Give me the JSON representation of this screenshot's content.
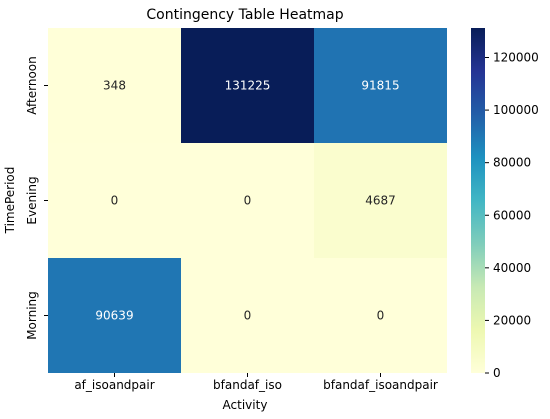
{
  "chart_data": {
    "type": "heatmap",
    "title": "Contingency Table Heatmap",
    "xlabel": "Activity",
    "ylabel": "TimePeriod",
    "x_categories": [
      "af_isoandpair",
      "bfandaf_iso",
      "bfandaf_isoandpair"
    ],
    "y_categories": [
      "Afternoon",
      "Evening",
      "Morning"
    ],
    "values": [
      [
        348,
        131225,
        91815
      ],
      [
        0,
        0,
        4687
      ],
      [
        90639,
        0,
        0
      ]
    ],
    "colormap": "YlGnBu",
    "vmin": 0,
    "vmax": 131225,
    "colorbar_ticks": [
      "0",
      "20000",
      "40000",
      "60000",
      "80000",
      "100000",
      "120000"
    ],
    "colorbar_tick_values": [
      0,
      20000,
      40000,
      60000,
      80000,
      100000,
      120000
    ]
  }
}
